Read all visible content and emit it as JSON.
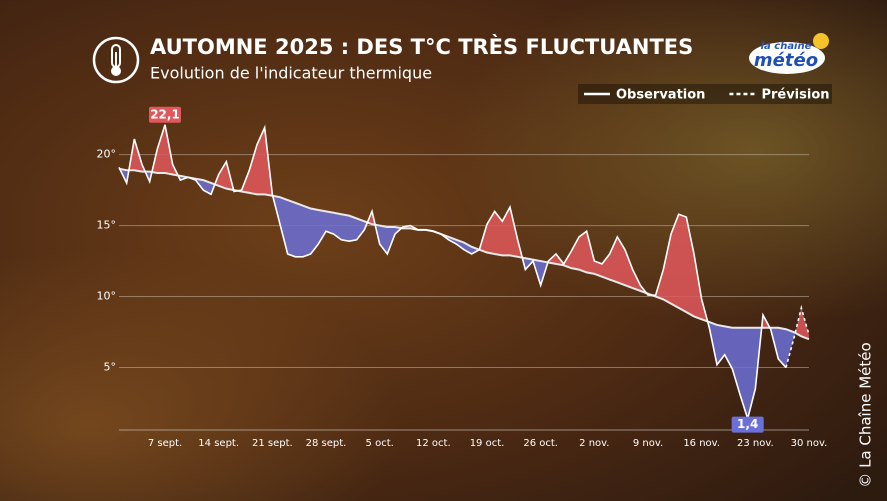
{
  "chart_data": {
    "type": "anomaly-line",
    "title": "AUTOMNE 2025 : DES T°C TRÈS FLUCTUANTES",
    "subtitle": "Evolution de l'indicateur thermique",
    "logo": {
      "top": "la chaîne",
      "bottom": "météo"
    },
    "credit": "© La Chaîne Météo",
    "categories": [
      null,
      null,
      null,
      null,
      null,
      null,
      "7 sept.",
      null,
      null,
      null,
      null,
      null,
      null,
      "14 sept.",
      null,
      null,
      null,
      null,
      null,
      null,
      "21 sept.",
      null,
      null,
      null,
      null,
      null,
      null,
      "28 sept.",
      null,
      null,
      null,
      null,
      null,
      null,
      "5 oct.",
      null,
      null,
      null,
      null,
      null,
      null,
      "12 oct.",
      null,
      null,
      null,
      null,
      null,
      null,
      "19 oct.",
      null,
      null,
      null,
      null,
      null,
      null,
      "26 oct.",
      null,
      null,
      null,
      null,
      null,
      null,
      "2 nov.",
      null,
      null,
      null,
      null,
      null,
      null,
      "9 nov.",
      null,
      null,
      null,
      null,
      null,
      null,
      "16 nov.",
      null,
      null,
      null,
      null,
      null,
      null,
      "23 nov.",
      null,
      null,
      null,
      null,
      null,
      null,
      "30 nov."
    ],
    "normal": {
      "color": "#e8e8e8",
      "values": [
        19.0,
        18.9,
        18.9,
        18.8,
        18.8,
        18.7,
        18.7,
        18.6,
        18.5,
        18.4,
        18.3,
        18.2,
        18.0,
        17.8,
        17.6,
        17.5,
        17.4,
        17.3,
        17.2,
        17.2,
        17.1,
        17.0,
        16.8,
        16.6,
        16.4,
        16.2,
        16.1,
        16.0,
        15.9,
        15.8,
        15.7,
        15.5,
        15.3,
        15.1,
        15.0,
        14.9,
        14.9,
        14.8,
        14.8,
        14.7,
        14.7,
        14.6,
        14.4,
        14.2,
        14.0,
        13.8,
        13.5,
        13.3,
        13.1,
        13.0,
        12.9,
        12.9,
        12.8,
        12.7,
        12.6,
        12.5,
        12.4,
        12.3,
        12.2,
        12.0,
        11.9,
        11.7,
        11.6,
        11.4,
        11.2,
        11.0,
        10.8,
        10.6,
        10.4,
        10.2,
        10.0,
        9.8,
        9.5,
        9.2,
        8.9,
        8.6,
        8.4,
        8.2,
        8.0,
        7.9,
        7.8,
        7.8,
        7.8,
        7.8,
        7.8,
        7.8,
        7.8,
        7.7,
        7.5,
        7.2,
        7.0
      ]
    },
    "series": [
      {
        "name": "Observation",
        "color": "#ffffff",
        "dashed": false,
        "values": [
          19.1,
          18.0,
          21.1,
          19.3,
          18.1,
          20.4,
          22.1,
          19.3,
          18.2,
          18.4,
          18.2,
          17.5,
          17.2,
          18.6,
          19.5,
          17.4,
          17.5,
          18.9,
          20.7,
          21.9,
          17.2,
          15.1,
          13.0,
          12.8,
          12.8,
          13.0,
          13.7,
          14.6,
          14.4,
          14.0,
          13.9,
          14.0,
          14.7,
          16.0,
          13.7,
          13.0,
          14.4,
          14.9,
          15.0,
          14.7,
          14.7,
          14.6,
          14.4,
          14.0,
          13.7,
          13.3,
          13.0,
          13.3,
          15.1,
          16.0,
          15.3,
          16.3,
          14.0,
          11.9,
          12.5,
          10.8,
          12.5,
          13.0,
          12.3,
          13.2,
          14.2,
          14.6,
          12.5,
          12.3,
          13.0,
          14.2,
          13.3,
          11.9,
          10.8,
          10.1,
          10.1,
          11.9,
          14.4,
          15.8,
          15.6,
          13.0,
          9.8,
          7.8,
          5.2,
          5.9,
          4.9,
          3.1,
          1.4,
          3.5,
          8.7,
          7.7,
          5.6,
          5.0,
          null,
          null,
          null
        ],
        "value_labels": [
          null,
          null,
          null,
          null,
          null,
          null,
          "22,1",
          null,
          null,
          null,
          null,
          null,
          null,
          null,
          null,
          null,
          null,
          null,
          null,
          null,
          null,
          null,
          null,
          null,
          null,
          null,
          null,
          null,
          null,
          null,
          null,
          null,
          null,
          null,
          null,
          null,
          null,
          null,
          null,
          null,
          null,
          null,
          null,
          null,
          null,
          null,
          null,
          null,
          null,
          null,
          null,
          null,
          null,
          null,
          null,
          null,
          null,
          null,
          null,
          null,
          null,
          null,
          null,
          null,
          null,
          null,
          null,
          null,
          null,
          null,
          null,
          null,
          null,
          null,
          null,
          null,
          null,
          null,
          null,
          null,
          null,
          null,
          "1,4",
          null,
          null,
          null,
          null,
          null,
          null,
          null,
          null
        ]
      },
      {
        "name": "Prévision",
        "color": "#ffffff",
        "dashed": true,
        "values": [
          null,
          null,
          null,
          null,
          null,
          null,
          null,
          null,
          null,
          null,
          null,
          null,
          null,
          null,
          null,
          null,
          null,
          null,
          null,
          null,
          null,
          null,
          null,
          null,
          null,
          null,
          null,
          null,
          null,
          null,
          null,
          null,
          null,
          null,
          null,
          null,
          null,
          null,
          null,
          null,
          null,
          null,
          null,
          null,
          null,
          null,
          null,
          null,
          null,
          null,
          null,
          null,
          null,
          null,
          null,
          null,
          null,
          null,
          null,
          null,
          null,
          null,
          null,
          null,
          null,
          null,
          null,
          null,
          null,
          null,
          null,
          null,
          null,
          null,
          null,
          null,
          null,
          null,
          null,
          null,
          null,
          null,
          null,
          null,
          null,
          null,
          null,
          5.0,
          7.0,
          9.2,
          7.3
        ]
      }
    ],
    "above_color": "#e0585c",
    "below_color": "#6b70d8",
    "ylim": [
      0.6,
      23
    ],
    "yticks": [
      {
        "value": 5,
        "label": "5°"
      },
      {
        "value": 10,
        "label": "10°"
      },
      {
        "value": 15,
        "label": "15°"
      },
      {
        "value": 20,
        "label": "20°"
      }
    ],
    "grid": true
  }
}
